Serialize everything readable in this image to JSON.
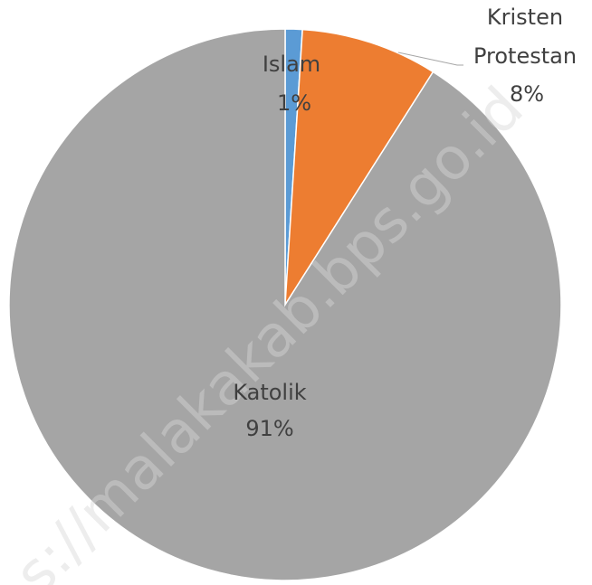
{
  "chart_data": {
    "type": "pie",
    "categories": [
      "Islam",
      "Kristen Protestan",
      "Katolik"
    ],
    "values": [
      1,
      8,
      91
    ],
    "value_labels": [
      "1%",
      "8%",
      "91%"
    ],
    "colors": [
      "#5b9bd5",
      "#ed7d31",
      "#a5a5a5"
    ],
    "watermark": "s://malakakab.bps.go.id"
  }
}
